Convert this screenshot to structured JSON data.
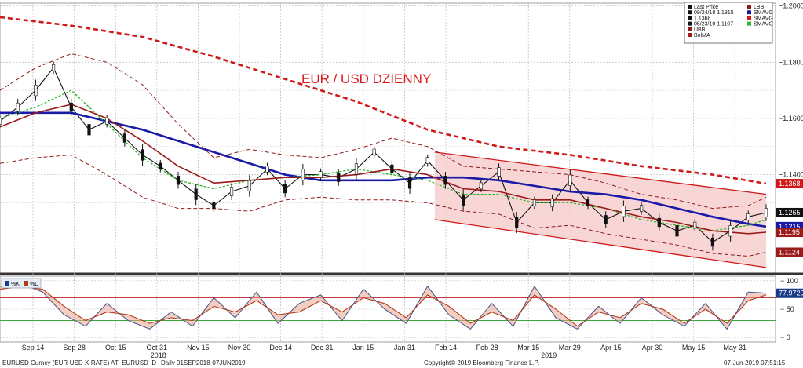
{
  "chart_data": {
    "type": "line",
    "title": "EUR / USD DZIENNY",
    "instrument": "EURUSD Curncy (EUR-USD X-RATE) AT_EURUSD_D",
    "period": "Daily 01SEP2018-07JUN2019",
    "copyright": "Copyright© 2019 Bloomberg Finance L.P.",
    "timestamp": "07-Jun-2019 07:51:15",
    "x_ticks": [
      "Sep 14",
      "Sep 28",
      "Oct 15",
      "Oct 31",
      "Nov 15",
      "Nov 30",
      "Dec 14",
      "Dec 31",
      "Jan 15",
      "Jan 31",
      "Feb 14",
      "Feb 28",
      "Mar 15",
      "Mar 29",
      "Apr 15",
      "Apr 30",
      "May 15",
      "May 31"
    ],
    "x_years": [
      "2018",
      "2019"
    ],
    "price_axis": {
      "ticks": [
        "1.2000",
        "1.1800",
        "1.1600",
        "1.1400"
      ],
      "ylim": [
        1.105,
        1.201
      ]
    },
    "osc_axis": {
      "ticks": [
        "100",
        "50",
        "0"
      ],
      "ylim": [
        -8,
        108
      ],
      "levels": [
        70,
        30
      ]
    },
    "legend": {
      "entries": [
        {
          "label": "Last Price",
          "color": "#111111"
        },
        {
          "label": "09/24/18 1.1815",
          "color": "#111111"
        },
        {
          "label": "1.1368",
          "color": "#111111"
        },
        {
          "label": "05/23/19 1.1107",
          "color": "#111111"
        },
        {
          "label": "UBB",
          "color": "#8b1a1a"
        },
        {
          "label": "BolMA",
          "color": "#9b1b1b"
        },
        {
          "label": "LBB",
          "color": "#8b1a1a"
        },
        {
          "label": "SMAVG",
          "color": "#1a1aa8"
        },
        {
          "label": "SMAVG",
          "color": "#d01818"
        },
        {
          "label": "SMAVG",
          "color": "#2bb52b"
        }
      ]
    },
    "tags": [
      {
        "value": "1.1368",
        "color": "#d01818"
      },
      {
        "value": "1.1265",
        "color": "#111111"
      },
      {
        "value": "1.1215",
        "color": "#1a1aa8"
      },
      {
        "value": "1.1195",
        "color": "#9b1b1b"
      },
      {
        "value": "1.1124",
        "color": "#9b1b1b"
      },
      {
        "value": "77.9729",
        "color": "#1a3a8a"
      }
    ],
    "osc_legend": [
      "%K",
      "%D"
    ],
    "series": [
      {
        "name": "Last Price",
        "color": "#111111",
        "x": [
          0,
          5,
          10,
          15,
          20,
          25,
          30,
          35,
          40,
          45,
          50,
          55,
          60,
          65,
          70,
          75,
          80,
          85,
          90,
          95,
          100,
          105,
          110,
          115,
          120,
          125,
          130,
          135,
          140,
          145,
          150,
          155,
          160,
          165,
          170,
          175,
          180,
          185,
          190,
          195,
          200,
          205,
          210,
          215
        ],
        "values": [
          1.159,
          1.164,
          1.17,
          1.178,
          1.164,
          1.156,
          1.159,
          1.153,
          1.147,
          1.143,
          1.138,
          1.133,
          1.129,
          1.134,
          1.136,
          1.142,
          1.135,
          1.14,
          1.14,
          1.139,
          1.142,
          1.148,
          1.142,
          1.137,
          1.145,
          1.138,
          1.131,
          1.136,
          1.141,
          1.123,
          1.13,
          1.13,
          1.138,
          1.13,
          1.124,
          1.127,
          1.128,
          1.123,
          1.12,
          1.122,
          1.116,
          1.12,
          1.125,
          1.1265
        ]
      },
      {
        "name": "SMAVG",
        "color": "#1a1aa8",
        "x": [
          0,
          10,
          20,
          30,
          40,
          50,
          60,
          70,
          80,
          90,
          100,
          110,
          120,
          130,
          140,
          150,
          160,
          170,
          180,
          190,
          200,
          210,
          215
        ],
        "values": [
          1.162,
          1.162,
          1.162,
          1.159,
          1.156,
          1.152,
          1.148,
          1.144,
          1.14,
          1.138,
          1.138,
          1.138,
          1.139,
          1.139,
          1.138,
          1.136,
          1.134,
          1.133,
          1.131,
          1.128,
          1.125,
          1.1225,
          1.1215
        ]
      },
      {
        "name": "SMAVG",
        "color": "#d01818",
        "x": [
          0,
          20,
          40,
          60,
          80,
          100,
          120,
          140,
          160,
          180,
          200,
          215
        ],
        "values": [
          1.196,
          1.193,
          1.189,
          1.182,
          1.174,
          1.166,
          1.156,
          1.15,
          1.147,
          1.143,
          1.14,
          1.1368
        ]
      },
      {
        "name": "SMAVG",
        "color": "#2bb52b",
        "x": [
          0,
          10,
          20,
          30,
          40,
          50,
          60,
          70,
          80,
          90,
          100,
          110,
          120,
          130,
          140,
          150,
          160,
          170,
          180,
          190,
          200,
          210,
          215
        ],
        "values": [
          1.16,
          1.164,
          1.17,
          1.158,
          1.146,
          1.138,
          1.135,
          1.138,
          1.139,
          1.14,
          1.142,
          1.14,
          1.138,
          1.133,
          1.133,
          1.13,
          1.13,
          1.128,
          1.124,
          1.122,
          1.12,
          1.122,
          1.124
        ]
      },
      {
        "name": "BolMA",
        "color": "#9b1b1b",
        "x": [
          0,
          10,
          20,
          30,
          40,
          50,
          60,
          70,
          80,
          90,
          100,
          110,
          120,
          130,
          140,
          150,
          160,
          170,
          180,
          190,
          200,
          210,
          215
        ],
        "values": [
          1.157,
          1.162,
          1.165,
          1.16,
          1.152,
          1.143,
          1.137,
          1.138,
          1.139,
          1.139,
          1.14,
          1.142,
          1.14,
          1.135,
          1.134,
          1.131,
          1.131,
          1.128,
          1.125,
          1.123,
          1.12,
          1.119,
          1.1195
        ]
      },
      {
        "name": "UBB",
        "color": "#8b1a1a",
        "x": [
          0,
          10,
          20,
          30,
          40,
          50,
          60,
          70,
          80,
          90,
          100,
          110,
          120,
          130,
          140,
          150,
          160,
          170,
          180,
          190,
          200,
          210,
          215
        ],
        "values": [
          1.17,
          1.178,
          1.183,
          1.18,
          1.172,
          1.158,
          1.146,
          1.149,
          1.147,
          1.146,
          1.149,
          1.153,
          1.15,
          1.143,
          1.142,
          1.141,
          1.14,
          1.137,
          1.133,
          1.131,
          1.128,
          1.129,
          1.132
        ]
      },
      {
        "name": "LBB",
        "color": "#8b1a1a",
        "x": [
          0,
          10,
          20,
          30,
          40,
          50,
          60,
          70,
          80,
          90,
          100,
          110,
          120,
          130,
          140,
          150,
          160,
          170,
          180,
          190,
          200,
          210,
          215
        ],
        "values": [
          1.144,
          1.146,
          1.147,
          1.14,
          1.132,
          1.128,
          1.128,
          1.127,
          1.131,
          1.132,
          1.131,
          1.131,
          1.13,
          1.127,
          1.126,
          1.121,
          1.122,
          1.119,
          1.117,
          1.115,
          1.112,
          1.111,
          1.1124
        ]
      },
      {
        "name": "%K",
        "color": "#1a3a8a",
        "axis": "osc",
        "x": [
          0,
          6,
          12,
          18,
          24,
          30,
          36,
          42,
          48,
          54,
          60,
          66,
          72,
          78,
          84,
          90,
          96,
          102,
          108,
          114,
          120,
          126,
          132,
          138,
          144,
          150,
          156,
          162,
          168,
          174,
          180,
          186,
          192,
          198,
          204,
          210,
          215
        ],
        "values": [
          90,
          95,
          80,
          40,
          20,
          60,
          30,
          15,
          45,
          20,
          70,
          35,
          80,
          25,
          60,
          75,
          30,
          85,
          50,
          25,
          90,
          40,
          15,
          60,
          20,
          90,
          35,
          15,
          55,
          25,
          70,
          40,
          20,
          60,
          15,
          80,
          78
        ]
      },
      {
        "name": "%D",
        "color": "#b23a1a",
        "axis": "osc",
        "x": [
          0,
          6,
          12,
          18,
          24,
          30,
          36,
          42,
          48,
          54,
          60,
          66,
          72,
          78,
          84,
          90,
          96,
          102,
          108,
          114,
          120,
          126,
          132,
          138,
          144,
          150,
          156,
          162,
          168,
          174,
          180,
          186,
          192,
          198,
          204,
          210,
          215
        ],
        "values": [
          85,
          90,
          85,
          55,
          30,
          45,
          40,
          25,
          35,
          30,
          55,
          45,
          65,
          40,
          45,
          65,
          45,
          70,
          60,
          35,
          75,
          55,
          25,
          45,
          30,
          75,
          50,
          20,
          45,
          35,
          60,
          50,
          25,
          50,
          25,
          65,
          75
        ]
      }
    ]
  }
}
